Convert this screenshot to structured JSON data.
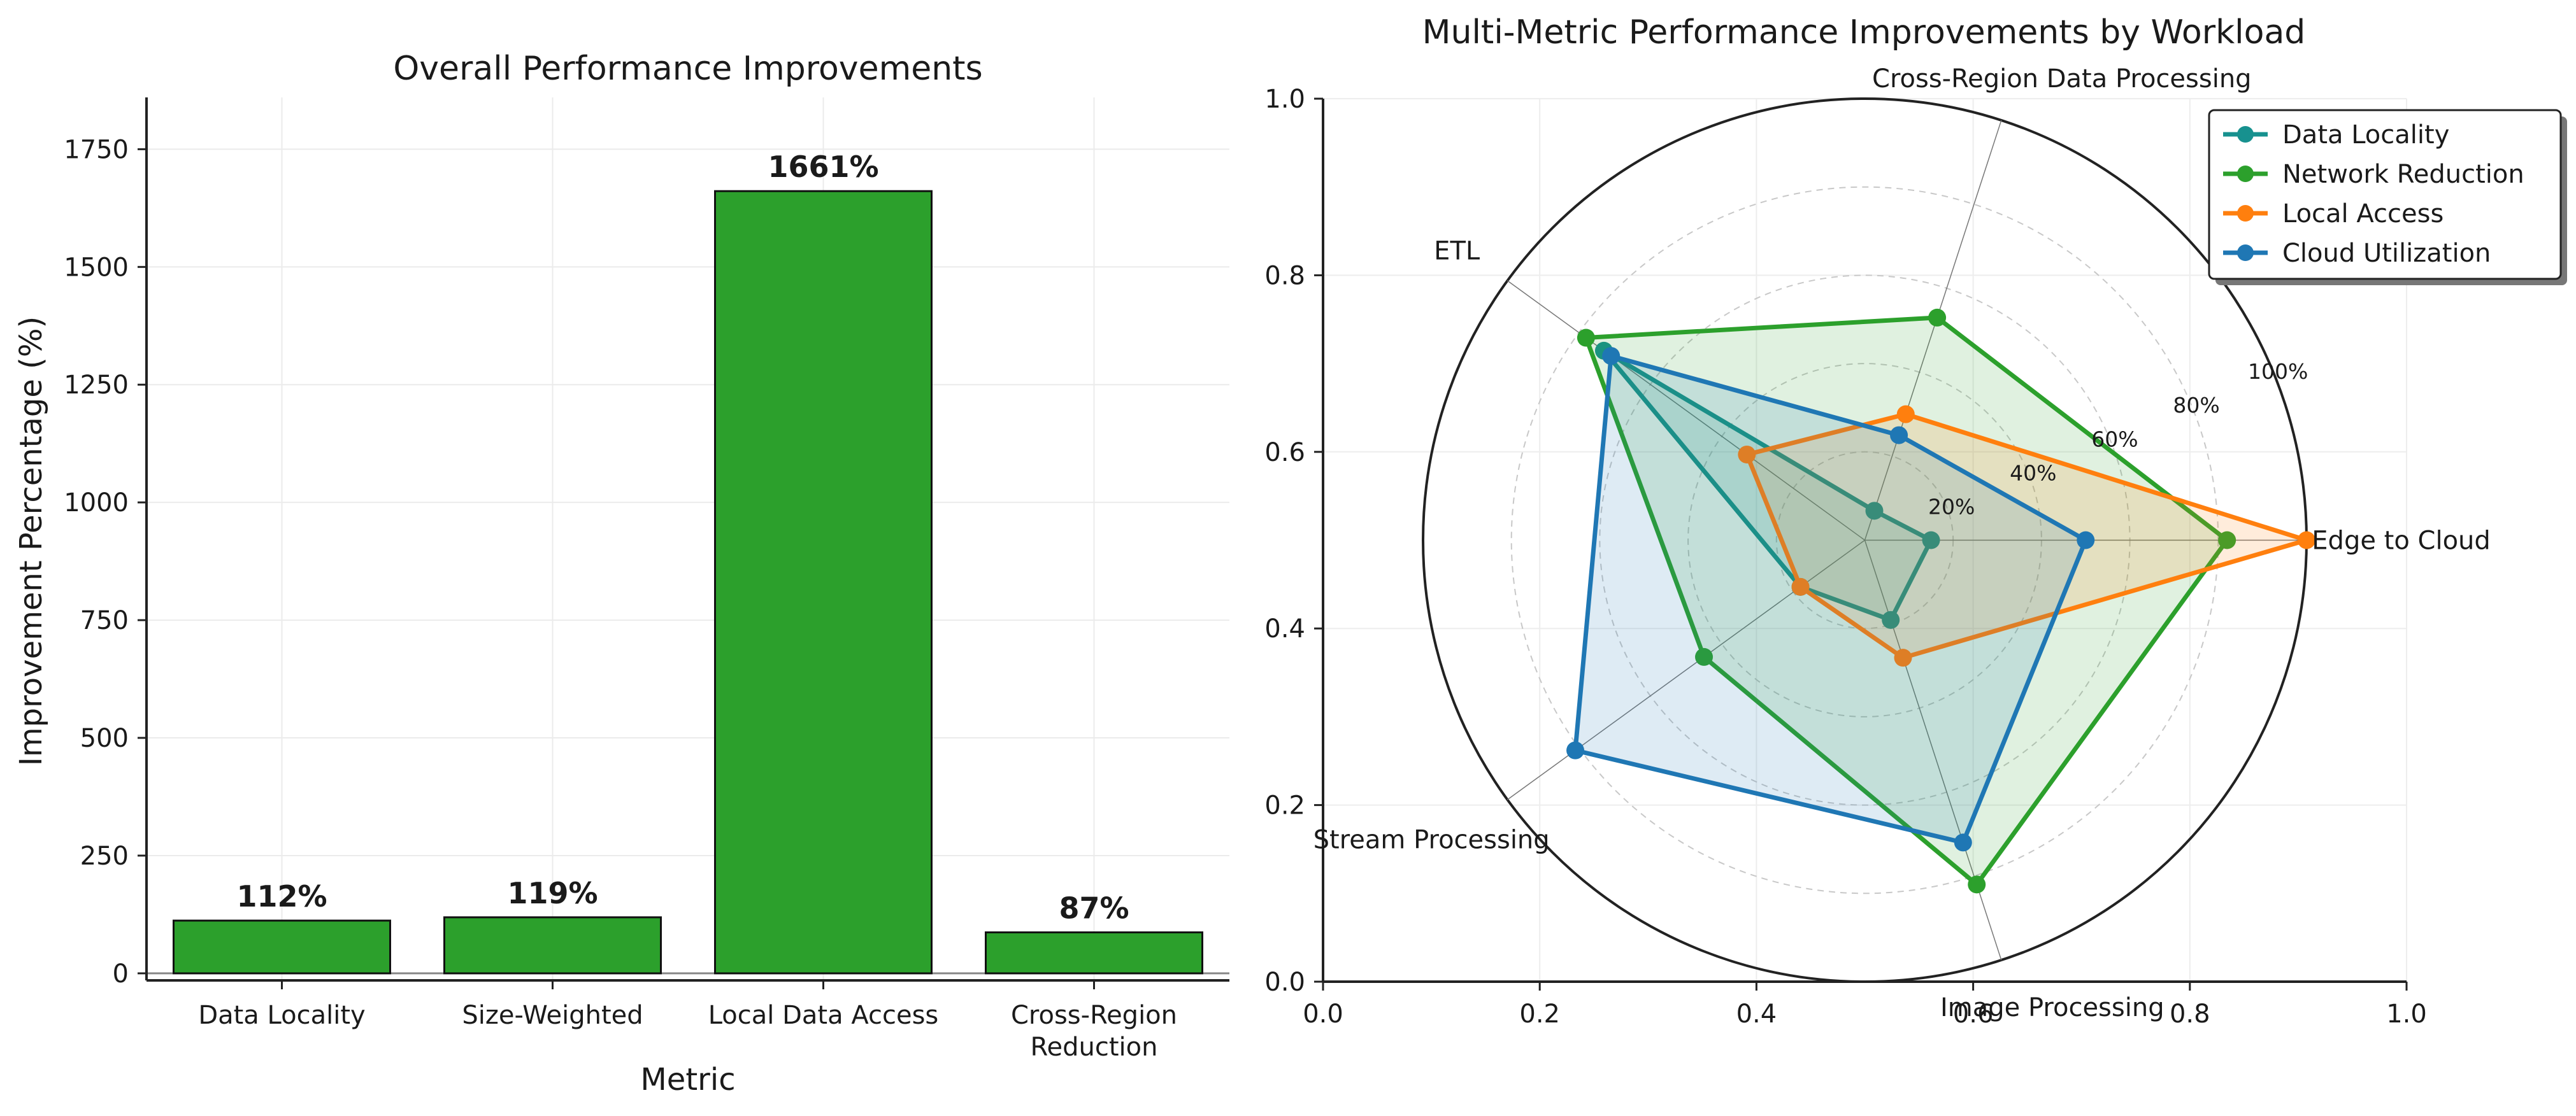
{
  "chart_data": [
    {
      "type": "bar",
      "title": "Overall Performance Improvements",
      "xlabel": "Metric",
      "ylabel": "Improvement Percentage (%)",
      "categories": [
        "Data Locality",
        "Size-Weighted",
        "Local Data Access",
        "Cross-Region Reduction"
      ],
      "category_lines": [
        [
          "Data Locality"
        ],
        [
          "Size-Weighted"
        ],
        [
          "Local Data Access"
        ],
        [
          "Cross-Region",
          "Reduction"
        ]
      ],
      "values": [
        112,
        119,
        1661,
        87
      ],
      "value_labels": [
        "112%",
        "119%",
        "1661%",
        "87%"
      ],
      "ylim": [
        -15,
        1860
      ],
      "yticks": [
        0,
        250,
        500,
        750,
        1000,
        1250,
        1500,
        1750
      ],
      "bar_color": "#2ca02c",
      "grid": true
    },
    {
      "type": "radar",
      "title": "Multi-Metric Performance Improvements by Workload",
      "axes": [
        "Edge to Cloud",
        "Cross-Region Data Processing",
        "ETL",
        "Stream Processing",
        "Image Processing"
      ],
      "radial_ticks": [
        "20%",
        "40%",
        "60%",
        "80%",
        "100%"
      ],
      "radial_tick_values": [
        20,
        40,
        60,
        80,
        100
      ],
      "cartesian_ticks": [
        "0.0",
        "0.2",
        "0.4",
        "0.6",
        "0.8",
        "1.0"
      ],
      "cartesian_tick_values": [
        0,
        0.2,
        0.4,
        0.6,
        0.8,
        1.0
      ],
      "series": [
        {
          "name": "Data Locality",
          "color": "#17918f",
          "values": [
            15,
            7,
            73,
            18,
            19
          ]
        },
        {
          "name": "Network Reduction",
          "color": "#2ca02c",
          "values": [
            82,
            53,
            78,
            45,
            82
          ]
        },
        {
          "name": "Local Access",
          "color": "#ff7f0e",
          "values": [
            100,
            30,
            33,
            18,
            28
          ]
        },
        {
          "name": "Cloud Utilization",
          "color": "#1f77b4",
          "values": [
            50,
            25,
            71,
            81,
            72
          ]
        }
      ],
      "legend_position": "top-right",
      "grid": true
    }
  ]
}
